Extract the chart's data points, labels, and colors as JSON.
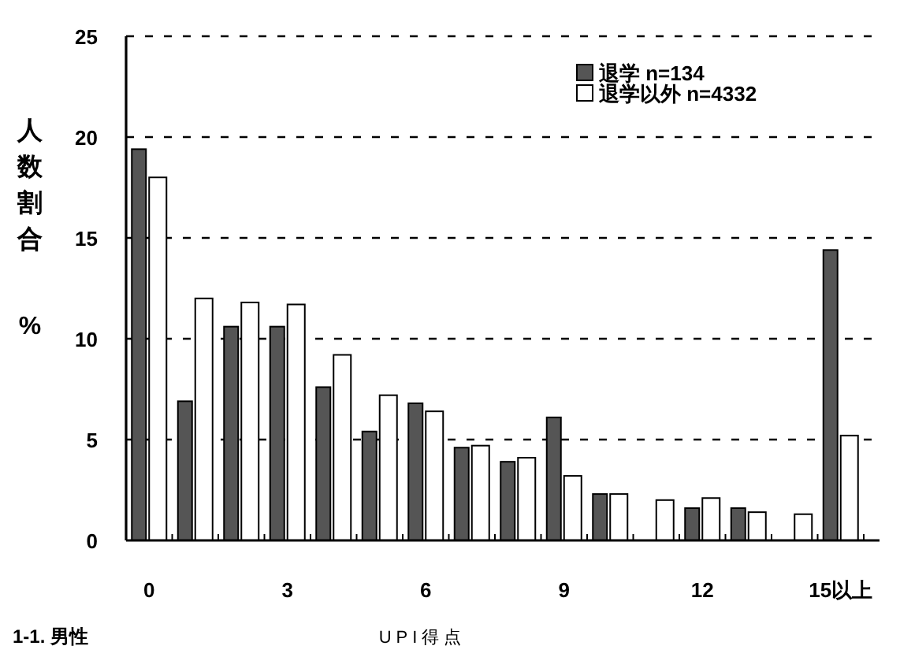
{
  "chart_data": {
    "type": "bar",
    "xlabel": "UPI得点",
    "ylabel": "人数割合%",
    "annotations": [
      "1-1. 男性"
    ],
    "categories": [
      "0",
      null,
      null,
      "3",
      null,
      null,
      "6",
      null,
      null,
      "9",
      null,
      null,
      "12",
      null,
      null,
      "15以上"
    ],
    "series": [
      {
        "name": "退学 n=134",
        "color": "#555555",
        "values": [
          19.4,
          6.9,
          10.6,
          10.6,
          7.6,
          5.4,
          6.8,
          4.6,
          3.9,
          6.1,
          2.3,
          0,
          1.6,
          1.6,
          0,
          14.4
        ]
      },
      {
        "name": "退学以外 n=4332",
        "color": "#ffffff",
        "values": [
          18.0,
          12.0,
          11.8,
          11.7,
          9.2,
          7.2,
          6.4,
          4.7,
          4.1,
          3.2,
          2.3,
          2.0,
          2.1,
          1.4,
          1.3,
          5.2
        ]
      }
    ],
    "ylim": [
      0,
      25
    ],
    "yticks": [
      0,
      5,
      10,
      15,
      20,
      25
    ],
    "grid": "y",
    "legend": "top right"
  }
}
